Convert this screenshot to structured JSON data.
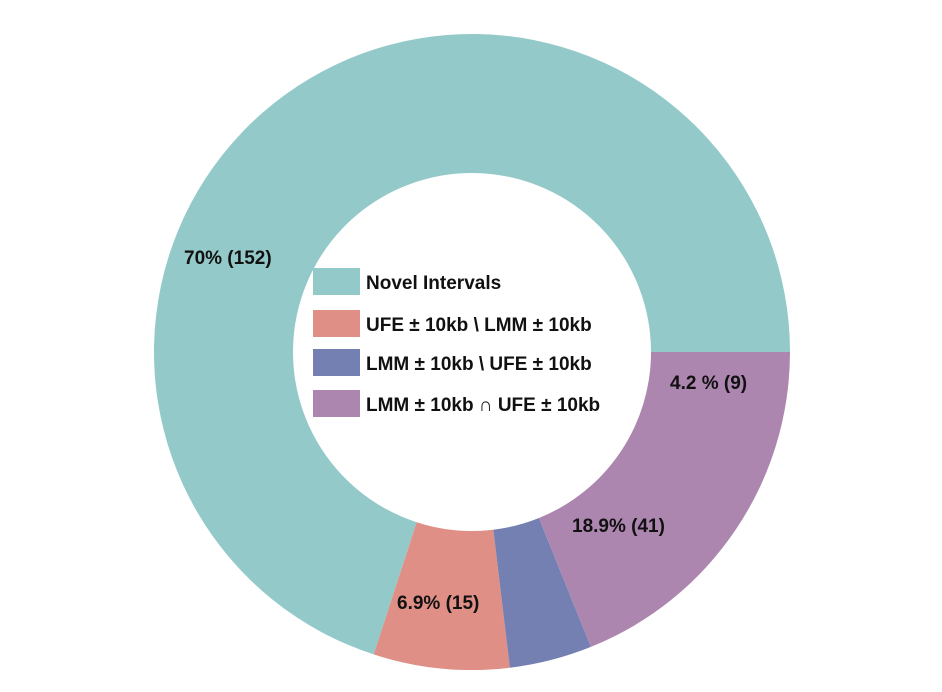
{
  "chart_data": {
    "type": "pie",
    "variant": "donut",
    "slices": [
      {
        "name": "Novel Intervals",
        "value": 70,
        "count": 152,
        "label": "70% (152)",
        "color": "#93c9c9"
      },
      {
        "name": "UFE ± 10kb \\ LMM ± 10kb",
        "value": 6.9,
        "count": 15,
        "label": "6.9% (15)",
        "color": "#df8f86"
      },
      {
        "name": "LMM ± 10kb \\ UFE ± 10kb",
        "value": 4.2,
        "count": 9,
        "label": "4.2 % (9)",
        "color": "#7480b2"
      },
      {
        "name": "LMM ± 10kb ∩ UFE ± 10kb",
        "value": 18.9,
        "count": 41,
        "label": "18.9% (41)",
        "color": "#ad86b0"
      }
    ],
    "legend": {
      "placement": "center",
      "entries": [
        {
          "label": "Novel Intervals",
          "color": "#93c9c9"
        },
        {
          "label": "UFE ± 10kb \\ LMM ± 10kb",
          "color": "#df8f86"
        },
        {
          "label": "LMM ± 10kb \\ UFE ± 10kb",
          "color": "#7480b2"
        },
        {
          "label": "LMM ± 10kb ∩ UFE ± 10kb",
          "color": "#ad86b0"
        }
      ]
    }
  }
}
